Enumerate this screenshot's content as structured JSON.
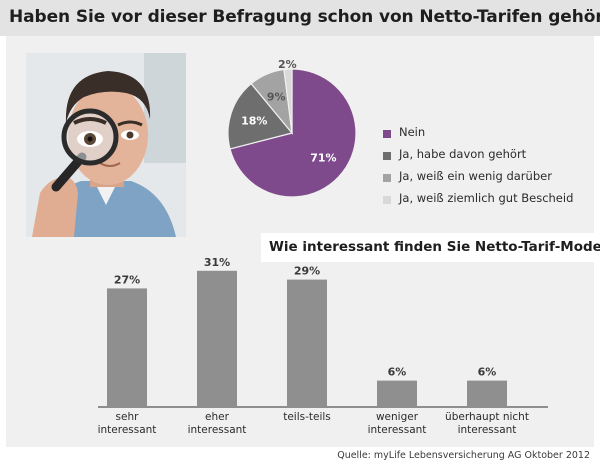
{
  "title": "Haben Sie vor dieser Befragung schon von Netto-Tarifen gehört?",
  "subtitle": "Wie interessant finden Sie Netto-Tarif-Modelle?",
  "source": "Quelle: myLife Lebensversicherung AG  Oktober 2012",
  "colors": {
    "purple": "#7e4a8c",
    "dark_gray": "#6e6e6e",
    "mid_gray": "#a3a3a3",
    "light_gray": "#d9d9d9",
    "bar": "#8f8f8f"
  },
  "photo": {
    "icon": "man-with-magnifying-glass"
  },
  "chart_data": [
    {
      "type": "pie",
      "title": "Haben Sie vor dieser Befragung schon von Netto-Tarifen gehört?",
      "slices": [
        {
          "label": "Nein",
          "value": 71,
          "value_label": "71%"
        },
        {
          "label": "Ja, habe davon gehört",
          "value": 18,
          "value_label": "18%"
        },
        {
          "label": "Ja, weiß ein wenig darüber",
          "value": 9,
          "value_label": "9%"
        },
        {
          "label": "Ja, weiß ziemlich gut Bescheid",
          "value": 2,
          "value_label": "2%"
        }
      ],
      "legend_placement": "right"
    },
    {
      "type": "bar",
      "title": "Wie interessant finden Sie Netto-Tarif-Modelle?",
      "categories": [
        [
          "sehr",
          "interessant"
        ],
        [
          "eher",
          "interessant"
        ],
        [
          "teils-teils"
        ],
        [
          "weniger",
          "interessant"
        ],
        [
          "überhaupt nicht",
          "interessant"
        ]
      ],
      "values": [
        27,
        31,
        29,
        6,
        6
      ],
      "value_labels": [
        "27%",
        "31%",
        "29%",
        "6%",
        "6%"
      ],
      "ylim": [
        0,
        33
      ],
      "grid": false
    }
  ]
}
